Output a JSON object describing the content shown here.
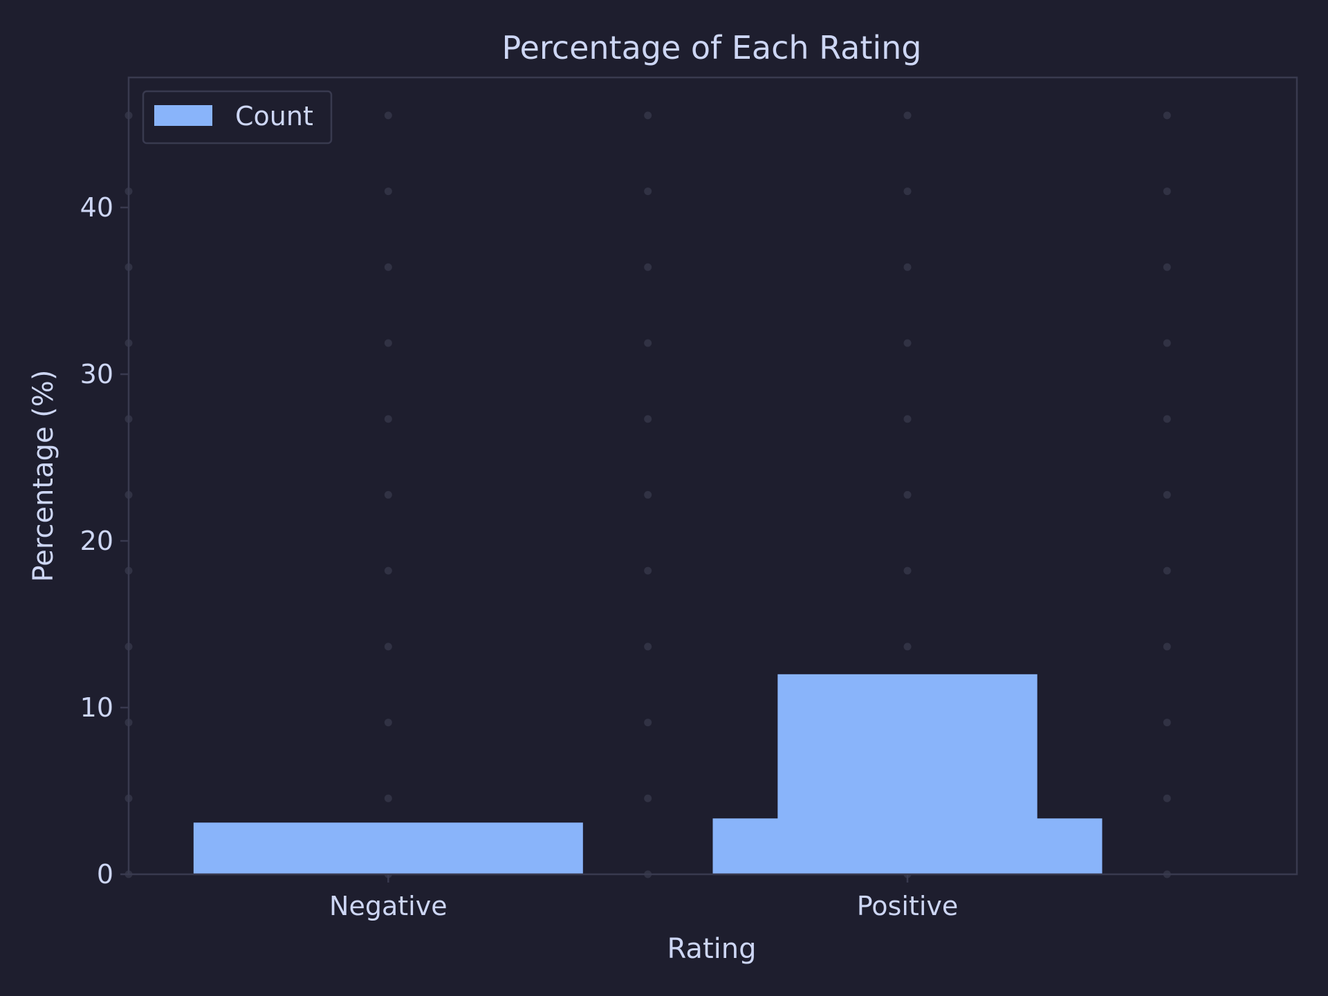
{
  "chart_data": {
    "type": "bar",
    "title": "Percentage of Each Rating",
    "xlabel": "Rating",
    "ylabel": "Percentage (%)",
    "categories": [
      "Negative",
      "Positive"
    ],
    "series": [
      {
        "name": "Count",
        "values": [
          3.1,
          3.35
        ]
      },
      {
        "name": "",
        "values": [
          0,
          12.0
        ]
      }
    ],
    "ylim": [
      0,
      47.8
    ],
    "yticks": [
      0,
      10,
      20,
      30,
      40
    ],
    "grid": true,
    "legend_position": "top-left",
    "colors": {
      "background": "#1e1e2e",
      "bar": "#89b4fa",
      "text": "#cdd6f4",
      "frame": "#393a4f",
      "grid_dot": "#313244"
    }
  }
}
